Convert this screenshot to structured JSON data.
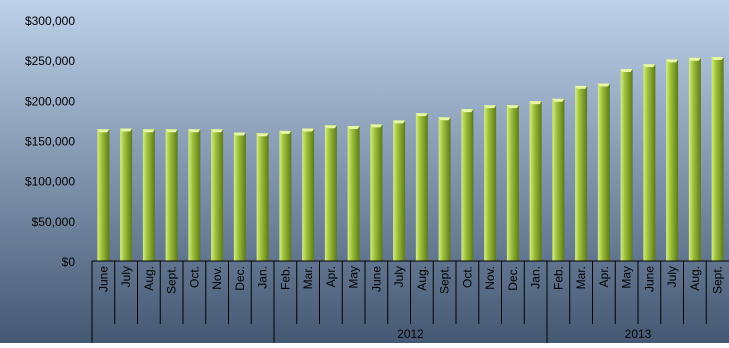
{
  "chart_data": {
    "type": "bar",
    "title": "",
    "xlabel": "",
    "ylabel": "",
    "ylim": [
      0,
      300000
    ],
    "yticks": [
      "$0",
      "$50,000",
      "$100,000",
      "$150,000",
      "$200,000",
      "$250,000",
      "$300,000"
    ],
    "grid": false,
    "legend": "none",
    "categories": [
      "June",
      "July",
      "Aug.",
      "Sept.",
      "Oct.",
      "Nov.",
      "Dec.",
      "Jan.",
      "Feb.",
      "Mar.",
      "Apr.",
      "May",
      "June",
      "July",
      "Aug.",
      "Sept.",
      "Oct.",
      "Nov.",
      "Dec.",
      "Jan.",
      "Feb.",
      "Mar.",
      "Apr.",
      "May",
      "June",
      "July",
      "Aug.",
      "Sept."
    ],
    "values": [
      164000,
      165000,
      164000,
      164000,
      164000,
      164000,
      160000,
      159000,
      162000,
      165000,
      169000,
      168000,
      170000,
      175000,
      184000,
      179000,
      189000,
      194000,
      194000,
      199000,
      202000,
      218000,
      221000,
      239000,
      245000,
      251000,
      253000,
      254000
    ],
    "groups": [
      {
        "label": "",
        "count": 8
      },
      {
        "label": "2012",
        "count": 12
      },
      {
        "label": "2013",
        "count": 8
      }
    ]
  },
  "colors": {
    "bg_top": "#bdd1ea",
    "bg_bottom": "#445873",
    "bar_light": "#d4ee82",
    "bar_mid": "#9fc43a",
    "bar_dark": "#5c7a18",
    "bar_top": "#e6f7a6",
    "text": "#000000",
    "axis": "#000000"
  }
}
